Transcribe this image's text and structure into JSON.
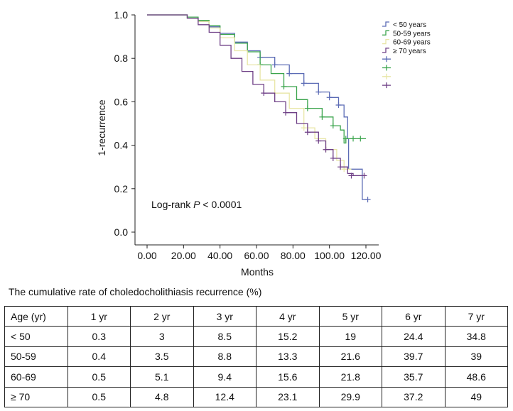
{
  "chart_data": {
    "type": "line",
    "subtype": "kaplan-meier step curves",
    "title": "",
    "xlabel": "Months",
    "ylabel": "1-recurrence",
    "xlim": [
      0,
      120
    ],
    "ylim": [
      0,
      1
    ],
    "xticks": [
      "0.00",
      "20.00",
      "40.00",
      "60.00",
      "80.00",
      "100.00",
      "120.00"
    ],
    "yticks": [
      "0.0",
      "0.2",
      "0.4",
      "0.6",
      "0.8",
      "1.0"
    ],
    "annotation_prefix": "Log-rank ",
    "annotation_p": "P",
    "annotation_suffix": " < 0.0001",
    "legend_position": "top-right",
    "grid": false,
    "series": [
      {
        "name": "< 50 years",
        "color": "#5b6bb5",
        "points": [
          [
            0,
            1.0
          ],
          [
            15,
            1.0
          ],
          [
            22,
            0.985
          ],
          [
            28,
            0.97
          ],
          [
            34,
            0.945
          ],
          [
            40,
            0.915
          ],
          [
            48,
            0.875
          ],
          [
            55,
            0.835
          ],
          [
            62,
            0.805
          ],
          [
            70,
            0.77
          ],
          [
            78,
            0.73
          ],
          [
            86,
            0.685
          ],
          [
            94,
            0.645
          ],
          [
            100,
            0.62
          ],
          [
            105,
            0.585
          ],
          [
            108,
            0.53
          ],
          [
            110,
            0.43
          ],
          [
            110.5,
            0.29
          ],
          [
            114,
            0.29
          ],
          [
            118,
            0.29
          ],
          [
            118,
            0.15
          ],
          [
            121,
            0.15
          ]
        ],
        "censored": [
          [
            62,
            0.805
          ],
          [
            70,
            0.77
          ],
          [
            78,
            0.73
          ],
          [
            86,
            0.685
          ],
          [
            94,
            0.645
          ],
          [
            100,
            0.62
          ],
          [
            105,
            0.585
          ],
          [
            121,
            0.15
          ]
        ]
      },
      {
        "name": "50-59 years",
        "color": "#3aa44c",
        "points": [
          [
            0,
            1.0
          ],
          [
            15,
            1.0
          ],
          [
            22,
            0.99
          ],
          [
            28,
            0.975
          ],
          [
            34,
            0.95
          ],
          [
            40,
            0.91
          ],
          [
            48,
            0.87
          ],
          [
            55,
            0.83
          ],
          [
            62,
            0.77
          ],
          [
            68,
            0.73
          ],
          [
            75,
            0.67
          ],
          [
            82,
            0.61
          ],
          [
            88,
            0.57
          ],
          [
            96,
            0.53
          ],
          [
            102,
            0.49
          ],
          [
            106,
            0.47
          ],
          [
            108,
            0.41
          ],
          [
            109,
            0.43
          ],
          [
            120,
            0.43
          ]
        ],
        "censored": [
          [
            62,
            0.77
          ],
          [
            75,
            0.67
          ],
          [
            88,
            0.57
          ],
          [
            96,
            0.53
          ],
          [
            102,
            0.49
          ],
          [
            109,
            0.43
          ],
          [
            113,
            0.43
          ],
          [
            117,
            0.43
          ]
        ]
      },
      {
        "name": "60-69 years",
        "color": "#e8e6a6",
        "points": [
          [
            0,
            1.0
          ],
          [
            15,
            1.0
          ],
          [
            22,
            0.985
          ],
          [
            28,
            0.97
          ],
          [
            34,
            0.94
          ],
          [
            40,
            0.895
          ],
          [
            48,
            0.835
          ],
          [
            55,
            0.77
          ],
          [
            62,
            0.7
          ],
          [
            70,
            0.64
          ],
          [
            78,
            0.57
          ],
          [
            86,
            0.48
          ],
          [
            92,
            0.43
          ],
          [
            98,
            0.38
          ],
          [
            104,
            0.33
          ],
          [
            108,
            0.29
          ],
          [
            112,
            0.29
          ]
        ],
        "censored": [
          [
            70,
            0.64
          ],
          [
            86,
            0.48
          ],
          [
            98,
            0.38
          ],
          [
            108,
            0.29
          ]
        ]
      },
      {
        "name": "≥ 70 years",
        "color": "#6e3f86",
        "points": [
          [
            0,
            1.0
          ],
          [
            16,
            1.0
          ],
          [
            22,
            0.985
          ],
          [
            28,
            0.955
          ],
          [
            34,
            0.92
          ],
          [
            40,
            0.86
          ],
          [
            46,
            0.8
          ],
          [
            52,
            0.74
          ],
          [
            58,
            0.68
          ],
          [
            64,
            0.64
          ],
          [
            70,
            0.6
          ],
          [
            76,
            0.55
          ],
          [
            82,
            0.5
          ],
          [
            88,
            0.46
          ],
          [
            94,
            0.42
          ],
          [
            98,
            0.38
          ],
          [
            102,
            0.34
          ],
          [
            106,
            0.3
          ],
          [
            110,
            0.27
          ],
          [
            113,
            0.26
          ],
          [
            120,
            0.26
          ]
        ],
        "censored": [
          [
            64,
            0.64
          ],
          [
            76,
            0.55
          ],
          [
            88,
            0.46
          ],
          [
            94,
            0.42
          ],
          [
            98,
            0.38
          ],
          [
            102,
            0.34
          ],
          [
            106,
            0.3
          ],
          [
            112,
            0.26
          ],
          [
            119,
            0.26
          ]
        ]
      }
    ]
  },
  "table": {
    "caption": "The cumulative rate of choledocholithiasis recurrence (%)",
    "headers": [
      "Age (yr)",
      "1 yr",
      "2 yr",
      "3 yr",
      "4 yr",
      "5 yr",
      "6 yr",
      "7 yr"
    ],
    "rows": [
      [
        "< 50",
        "0.3",
        "3",
        "8.5",
        "15.2",
        "19",
        "24.4",
        "34.8"
      ],
      [
        "50-59",
        "0.4",
        "3.5",
        "8.8",
        "13.3",
        "21.6",
        "39.7",
        "39"
      ],
      [
        "60-69",
        "0.5",
        "5.1",
        "9.4",
        "15.6",
        "21.8",
        "35.7",
        "48.6"
      ],
      [
        "≥ 70",
        "0.5",
        "4.8",
        "12.4",
        "23.1",
        "29.9",
        "37.2",
        "49"
      ]
    ]
  }
}
